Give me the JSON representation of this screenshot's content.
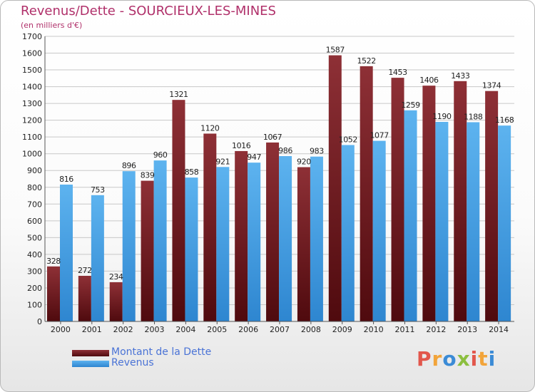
{
  "chart_data": {
    "type": "bar",
    "title": "Revenus/Dette - SOURCIEUX-LES-MINES",
    "subtitle": "(en milliers d'€)",
    "categories": [
      "2000",
      "2001",
      "2002",
      "2003",
      "2004",
      "2005",
      "2006",
      "2007",
      "2008",
      "2009",
      "2010",
      "2011",
      "2012",
      "2013",
      "2014"
    ],
    "series": [
      {
        "name": "Montant de la Dette",
        "color": "#7b1f24",
        "values": [
          328,
          272,
          234,
          839,
          1321,
          1120,
          1016,
          1067,
          920,
          1587,
          1522,
          1453,
          1406,
          1433,
          1374
        ]
      },
      {
        "name": "Revenus",
        "color": "#4aa3e6",
        "values": [
          816,
          753,
          896,
          960,
          858,
          921,
          947,
          986,
          983,
          1052,
          1077,
          1259,
          1190,
          1188,
          1168
        ]
      }
    ],
    "ylim": [
      0,
      1700
    ],
    "yticks": [
      0,
      100,
      200,
      300,
      400,
      500,
      600,
      700,
      800,
      900,
      1000,
      1100,
      1200,
      1300,
      1400,
      1500,
      1600,
      1700
    ],
    "grid": true,
    "legend_position": "bottom-left",
    "data_labels": true
  },
  "logo": {
    "text": "Proxiti"
  }
}
